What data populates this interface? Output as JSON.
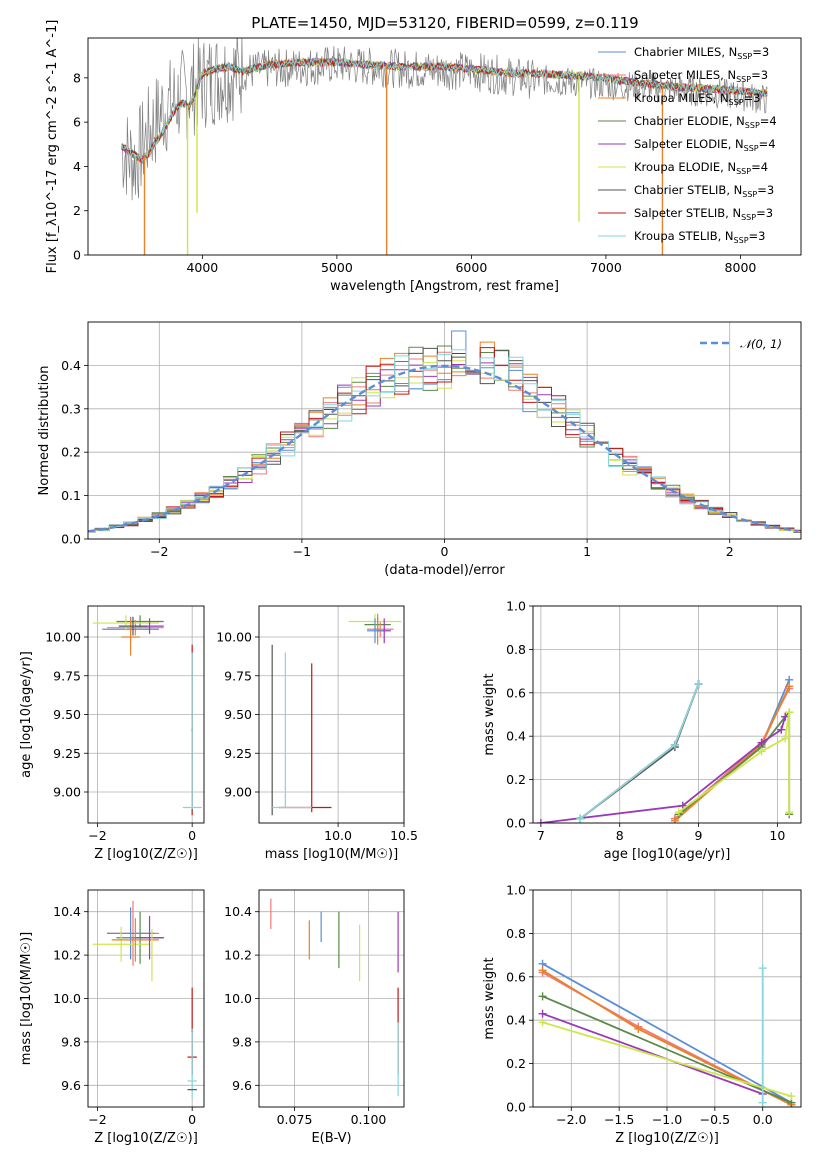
{
  "figure": {
    "title": "PLATE=1450, MJD=53120, FIBERID=0599, z=0.119"
  },
  "legend_series": [
    {
      "name": "Chabrier MILES, N",
      "sub": "SSP",
      "suffix": "=3",
      "color": "#5a8fd6"
    },
    {
      "name": "Salpeter MILES, N",
      "sub": "SSP",
      "suffix": "=3",
      "color": "#f07a78"
    },
    {
      "name": "Kroupa MILES, N",
      "sub": "SSP",
      "suffix": "=3",
      "color": "#e8822a"
    },
    {
      "name": "Chabrier ELODIE, N",
      "sub": "SSP",
      "suffix": "=4",
      "color": "#5a8a4a"
    },
    {
      "name": "Salpeter ELODIE, N",
      "sub": "SSP",
      "suffix": "=4",
      "color": "#9a3ab8"
    },
    {
      "name": "Kroupa ELODIE, N",
      "sub": "SSP",
      "suffix": "=4",
      "color": "#cfe64a"
    },
    {
      "name": "Chabrier STELIB, N",
      "sub": "SSP",
      "suffix": "=3",
      "color": "#555555"
    },
    {
      "name": "Salpeter STELIB, N",
      "sub": "SSP",
      "suffix": "=3",
      "color": "#c01818"
    },
    {
      "name": "Kroupa STELIB, N",
      "sub": "SSP",
      "suffix": "=3",
      "color": "#86d6dc"
    }
  ],
  "chart_data": [
    {
      "id": "spectrum",
      "type": "line",
      "xlabel": "wavelength [Angstrom, rest frame]",
      "ylabel": "Flux [f_λ10^-17 erg cm^-2 s^-1 A^-1]",
      "xlim": [
        3150,
        8450
      ],
      "ylim": [
        0,
        9.8
      ],
      "xticks": [
        "4000",
        "5000",
        "6000",
        "7000",
        "8000"
      ],
      "yticks": [
        "0",
        "2",
        "4",
        "6",
        "8"
      ],
      "data_grey": {
        "x": [
          3400,
          3500,
          3600,
          3700,
          3800,
          3900,
          4000,
          4200,
          4500,
          5000,
          5500,
          6000,
          6500,
          7000,
          7500,
          8000,
          8200
        ],
        "y": [
          4.8,
          4.2,
          5.5,
          6.5,
          7.0,
          7.4,
          7.8,
          8.2,
          8.4,
          8.6,
          8.4,
          8.3,
          7.9,
          7.7,
          7.5,
          7.2,
          7.0
        ]
      },
      "model": {
        "x": [
          3400,
          3500,
          3550,
          3600,
          3700,
          3800,
          3850,
          3900,
          3950,
          4000,
          4100,
          4200,
          4300,
          4500,
          4700,
          5000,
          5200,
          5500,
          5800,
          6000,
          6300,
          6500,
          6800,
          7000,
          7200,
          7500,
          7800,
          8000,
          8200
        ],
        "y": [
          4.9,
          4.5,
          4.3,
          4.6,
          5.5,
          6.6,
          6.9,
          6.7,
          7.3,
          8.2,
          8.4,
          8.5,
          8.3,
          8.6,
          8.7,
          8.7,
          8.6,
          8.5,
          8.5,
          8.4,
          8.2,
          8.2,
          8.1,
          8.0,
          7.8,
          7.6,
          7.5,
          7.4,
          7.3
        ]
      },
      "spikes": [
        {
          "x": 3570,
          "y": 0.0,
          "color": "#e8822a"
        },
        {
          "x": 3890,
          "y": 0.0,
          "color": "#cfe64a"
        },
        {
          "x": 3960,
          "y": 1.9,
          "color": "#cfe64a"
        },
        {
          "x": 5370,
          "y": 0.0,
          "color": "#e8822a"
        },
        {
          "x": 6800,
          "y": 1.5,
          "color": "#cfe64a"
        },
        {
          "x": 7420,
          "y": 0.0,
          "color": "#e8822a"
        }
      ]
    },
    {
      "id": "residuals",
      "type": "histogram",
      "xlabel": "(data-model)/error",
      "ylabel": "Normed distribution",
      "xlim": [
        -2.5,
        2.5
      ],
      "ylim": [
        0,
        0.5
      ],
      "xticks": [
        "−2",
        "−1",
        "0",
        "1",
        "2"
      ],
      "yticks": [
        "0.0",
        "0.1",
        "0.2",
        "0.3",
        "0.4"
      ],
      "grid": true,
      "legend": "𝒩(0, 1)",
      "legend_position": "top-right",
      "bin_width": 0.1
    },
    {
      "id": "age_vs_z",
      "type": "errorbar",
      "xlabel": "Z [log10(Z/Z☉)]",
      "ylabel": "age  [log10(age/yr)]",
      "xlim": [
        -2.2,
        0.25
      ],
      "ylim": [
        8.8,
        10.2
      ],
      "xticks": [
        "−2",
        "0"
      ],
      "yticks": [
        "9.00",
        "9.25",
        "9.50",
        "9.75",
        "10.00"
      ],
      "grid": true
    },
    {
      "id": "age_vs_mass",
      "type": "errorbar",
      "xlabel": "mass [log10(M/M☉)]",
      "xlim": [
        9.4,
        10.5
      ],
      "ylim": [
        8.8,
        10.2
      ],
      "xticks": [
        "10.0",
        "10.5"
      ],
      "yticks": [
        "9.00",
        "9.25",
        "9.50",
        "9.75",
        "10.00"
      ],
      "grid": true
    },
    {
      "id": "massweight_vs_age",
      "type": "line",
      "xlabel": "age  [log10(age/yr)]",
      "ylabel": "mass weight",
      "xlim": [
        6.9,
        10.3
      ],
      "ylim": [
        0,
        1.0
      ],
      "xticks": [
        "7",
        "8",
        "9",
        "10"
      ],
      "yticks": [
        "0.0",
        "0.2",
        "0.4",
        "0.6",
        "0.8",
        "1.0"
      ],
      "grid": true,
      "series": [
        {
          "name": "Chabrier MILES",
          "x": [
            8.7,
            9.8,
            10.15
          ],
          "y": [
            0.02,
            0.36,
            0.66
          ]
        },
        {
          "name": "Salpeter MILES",
          "x": [
            8.7,
            9.8,
            10.15
          ],
          "y": [
            0.02,
            0.37,
            0.62
          ]
        },
        {
          "name": "Kroupa MILES",
          "x": [
            8.7,
            9.8,
            10.15
          ],
          "y": [
            0.01,
            0.36,
            0.63
          ]
        },
        {
          "name": "Chabrier ELODIE",
          "x": [
            8.75,
            9.8,
            10.1,
            10.15,
            10.15
          ],
          "y": [
            0.04,
            0.35,
            0.49,
            0.51,
            0.04
          ]
        },
        {
          "name": "Salpeter ELODIE",
          "x": [
            7.0,
            8.8,
            9.8,
            10.05,
            10.1
          ],
          "y": [
            0.0,
            0.08,
            0.37,
            0.43,
            0.49
          ]
        },
        {
          "name": "Kroupa ELODIE",
          "x": [
            8.75,
            9.8,
            10.1,
            10.15,
            10.15
          ],
          "y": [
            0.05,
            0.33,
            0.39,
            0.51,
            0.05
          ]
        },
        {
          "name": "Chabrier STELIB",
          "x": [
            7.5,
            8.7,
            9.0
          ],
          "y": [
            0.02,
            0.35,
            0.64
          ]
        },
        {
          "name": "Salpeter STELIB",
          "x": [
            7.5,
            8.7,
            9.0
          ],
          "y": [
            0.02,
            0.36,
            0.64
          ]
        },
        {
          "name": "Kroupa STELIB",
          "x": [
            7.5,
            8.7,
            9.0
          ],
          "y": [
            0.02,
            0.36,
            0.64
          ]
        }
      ]
    },
    {
      "id": "mass_vs_z",
      "type": "errorbar",
      "xlabel": "Z [log10(Z/Z☉)]",
      "ylabel": "mass [log10(M/M☉)]",
      "xlim": [
        -2.2,
        0.25
      ],
      "ylim": [
        9.5,
        10.5
      ],
      "xticks": [
        "−2",
        "0"
      ],
      "yticks": [
        "9.6",
        "9.8",
        "10.0",
        "10.2",
        "10.4"
      ],
      "grid": true
    },
    {
      "id": "mass_vs_ebv",
      "type": "errorbar",
      "xlabel": "E(B-V)",
      "xlim": [
        0.063,
        0.112
      ],
      "ylim": [
        9.5,
        10.5
      ],
      "xticks": [
        "0.075",
        "0.100"
      ],
      "yticks": [
        "9.6",
        "9.8",
        "10.0",
        "10.2",
        "10.4"
      ],
      "grid": true
    },
    {
      "id": "massweight_vs_z",
      "type": "line",
      "xlabel": "Z [log10(Z/Z☉)]",
      "ylabel": "mass weight",
      "xlim": [
        -2.4,
        0.4
      ],
      "ylim": [
        0,
        1.0
      ],
      "xticks": [
        "−2.0",
        "−1.5",
        "−1.0",
        "−0.5",
        "0.0"
      ],
      "yticks": [
        "0.0",
        "0.2",
        "0.4",
        "0.6",
        "0.8",
        "1.0"
      ],
      "grid": true,
      "series": [
        {
          "name": "Chabrier MILES",
          "x": [
            -2.3,
            0.3
          ],
          "y": [
            0.66,
            0.02
          ]
        },
        {
          "name": "Salpeter MILES",
          "x": [
            -2.3,
            -1.3,
            0.3
          ],
          "y": [
            0.62,
            0.37,
            0.01
          ]
        },
        {
          "name": "Kroupa MILES",
          "x": [
            -2.3,
            -1.3,
            0.3
          ],
          "y": [
            0.63,
            0.36,
            0.01
          ]
        },
        {
          "name": "Chabrier ELODIE",
          "x": [
            -2.3,
            0.3
          ],
          "y": [
            0.51,
            0.02
          ]
        },
        {
          "name": "Salpeter ELODIE",
          "x": [
            -2.3,
            0.0
          ],
          "y": [
            0.43,
            0.06
          ]
        },
        {
          "name": "Kroupa ELODIE",
          "x": [
            -2.3,
            0.3
          ],
          "y": [
            0.39,
            0.05
          ]
        },
        {
          "name": "Kroupa STELIB",
          "x": [
            0.0,
            0.0
          ],
          "y": [
            0.64,
            0.02
          ]
        }
      ]
    }
  ]
}
